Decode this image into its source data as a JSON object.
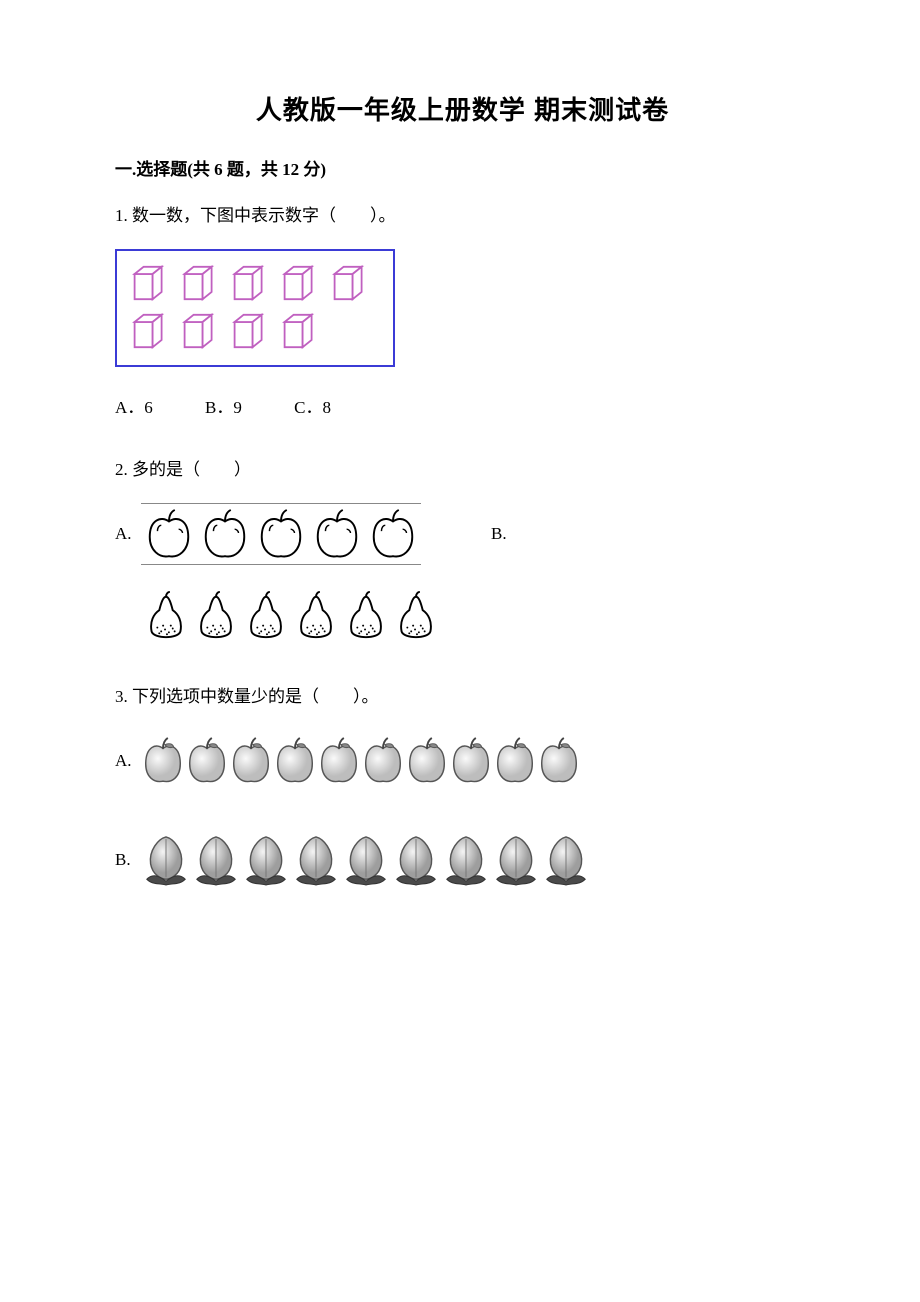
{
  "title": "人教版一年级上册数学 期末测试卷",
  "section1": {
    "header": "一.选择题(共 6 题，共 12 分)"
  },
  "q1": {
    "text": "1. 数一数，下图中表示数字（　　）。",
    "optA": "A．6",
    "optB": "B．9",
    "optC": "C．8",
    "cubes": {
      "row1_count": 5,
      "row2_count": 4,
      "stroke": "#c060c0",
      "fill": "#ffffff",
      "frame_border": "#3b3bd6"
    }
  },
  "q2": {
    "text": "2. 多的是（　　）",
    "labelA": "A.",
    "labelB": "B.",
    "apples_count": 5,
    "pears_count": 6,
    "apple_stroke": "#000000",
    "pear_stroke": "#000000"
  },
  "q3": {
    "text": "3. 下列选项中数量少的是（　　）。",
    "labelA": "A.",
    "labelB": "B.",
    "apples_count": 10,
    "peaches_count": 9
  }
}
